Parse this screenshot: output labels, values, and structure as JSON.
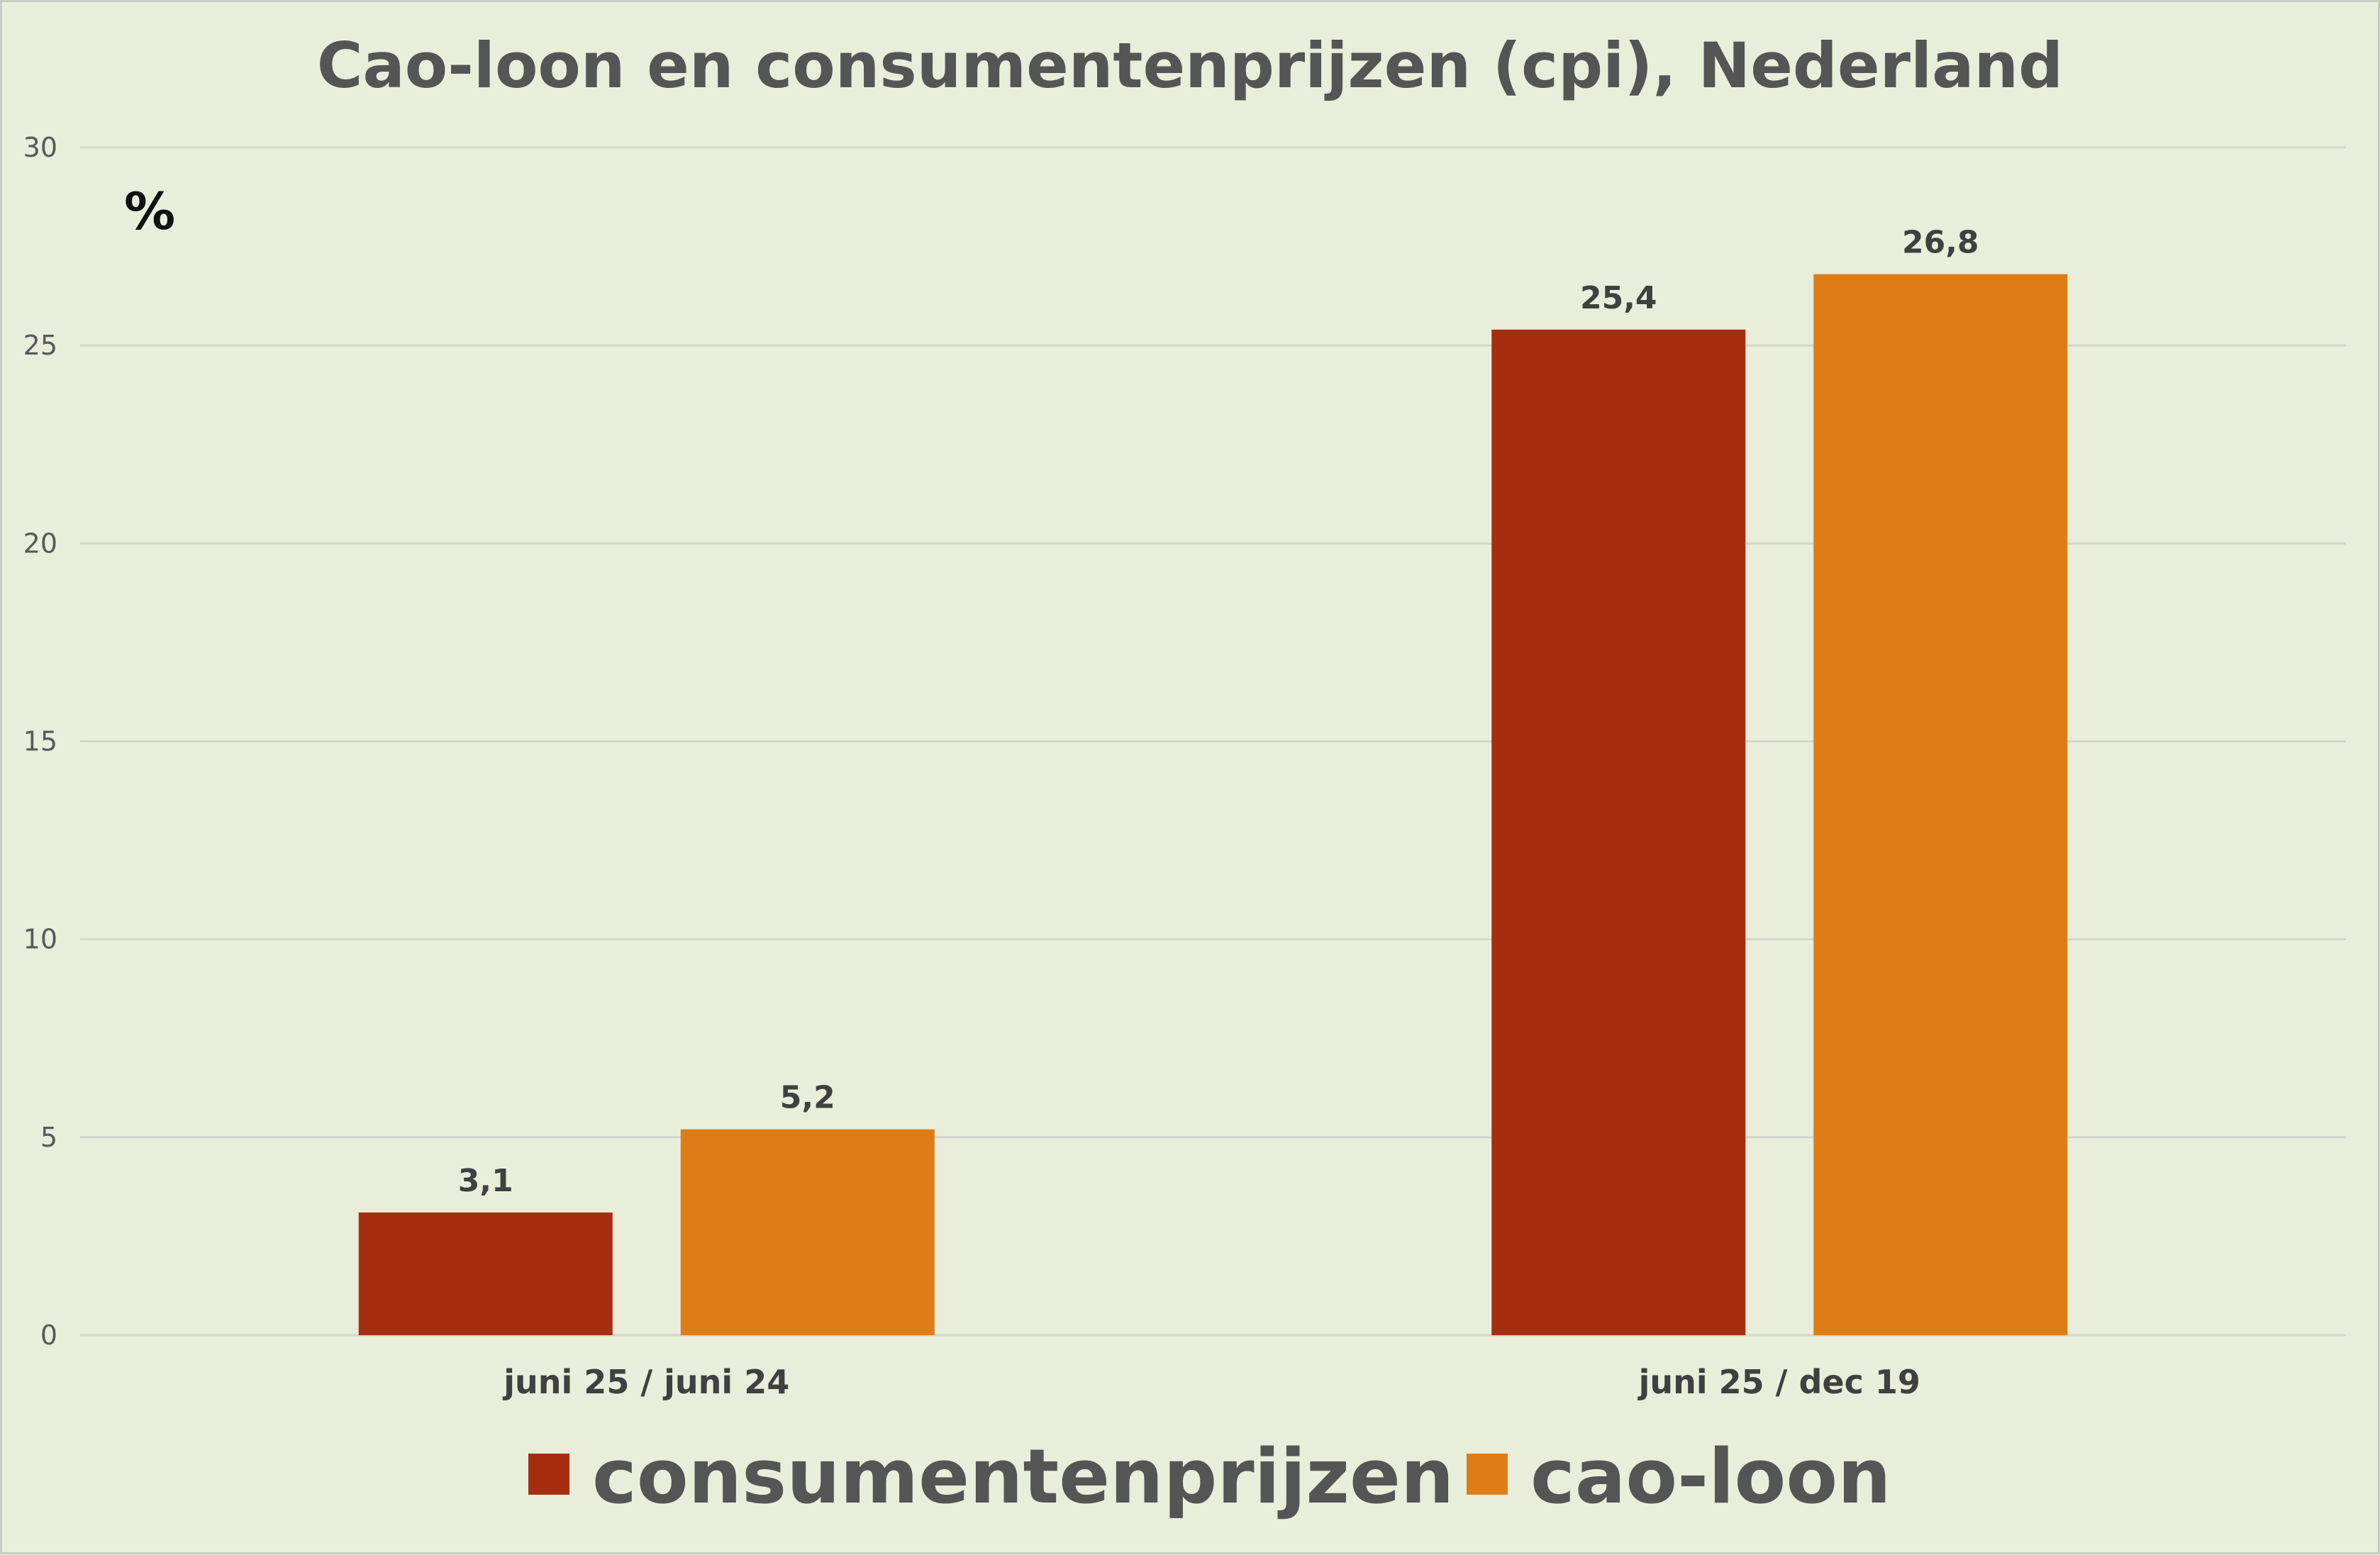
{
  "chart_data": {
    "type": "bar",
    "title": "Cao-loon en consumentenprijzen (cpi), Nederland",
    "ylabel": "%",
    "xlabel": "",
    "categories": [
      "juni 25 / juni 24",
      "juni 25 / dec 19"
    ],
    "series": [
      {
        "name": "consumentenprijzen",
        "color": "#a52e10",
        "values": [
          3.1,
          25.4
        ],
        "labels": [
          "3,1",
          "25,4"
        ]
      },
      {
        "name": "cao-loon",
        "color": "#de7d18",
        "values": [
          5.2,
          26.8
        ],
        "labels": [
          "5,2",
          "26,8"
        ]
      }
    ],
    "ylim": [
      0,
      30
    ],
    "yticks": [
      0,
      5,
      10,
      15,
      20,
      25,
      30
    ],
    "grid": true,
    "legend": "bottom"
  }
}
